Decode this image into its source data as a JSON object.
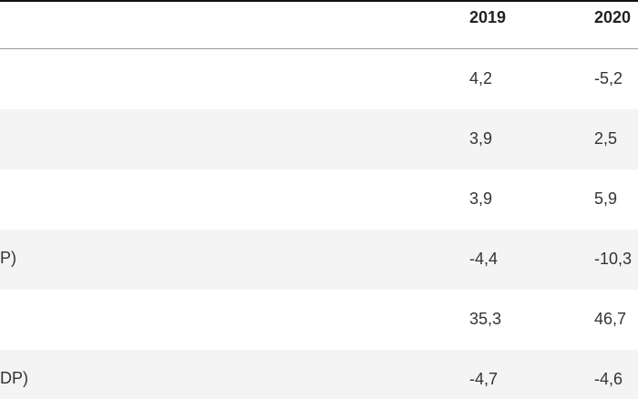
{
  "table": {
    "headers": [
      "2019",
      "2020"
    ],
    "rows": [
      {
        "label": "",
        "values": [
          "4,2",
          "-5,2"
        ]
      },
      {
        "label": "",
        "values": [
          "3,9",
          "2,5"
        ]
      },
      {
        "label": "",
        "values": [
          "3,9",
          "5,9"
        ]
      },
      {
        "label": "P)",
        "values": [
          "-4,4",
          "-10,3"
        ]
      },
      {
        "label": "",
        "values": [
          "35,3",
          "46,7"
        ]
      },
      {
        "label": "DP)",
        "values": [
          "-4,7",
          "-4,6"
        ]
      }
    ]
  },
  "colors": {
    "top_border": "#111111",
    "row_alt_background": "#f4f4f4",
    "text": "#333333"
  }
}
